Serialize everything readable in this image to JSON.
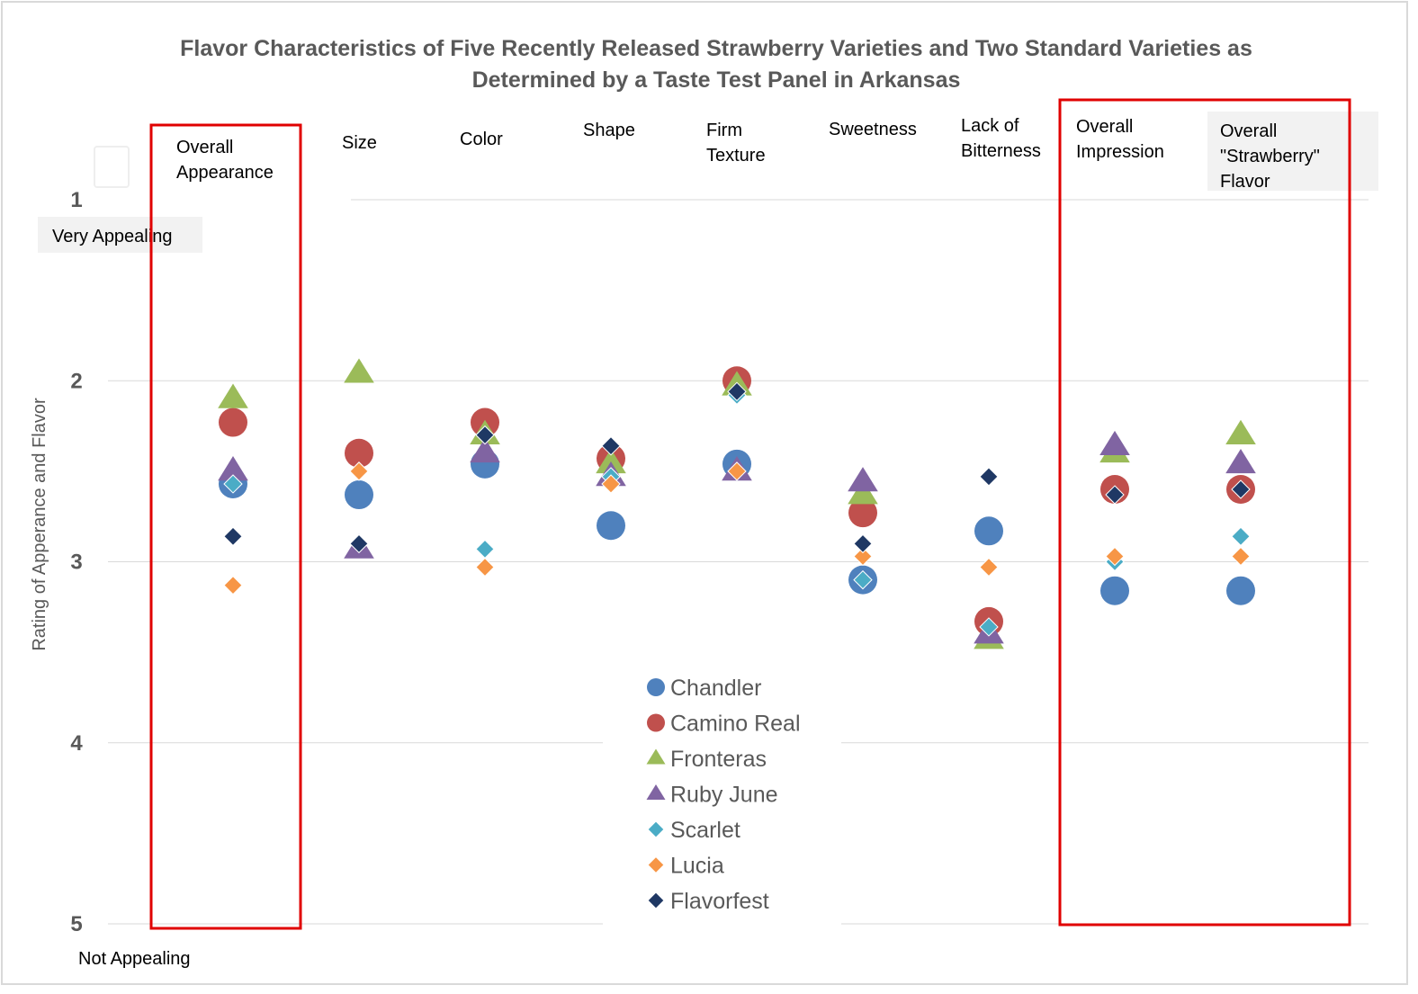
{
  "chart_data": {
    "type": "scatter",
    "title_lines": [
      "Flavor Characteristics of Five Recently Released Strawberry Varieties and Two Standard Varieties as",
      "Determined by a Taste Test Panel in Arkansas"
    ],
    "ylabel": "Rating of Apperance and Flavor",
    "ylim": [
      1,
      5
    ],
    "y_ticks": [
      "1",
      "2",
      "3",
      "4",
      "5"
    ],
    "y_reversed": true,
    "top_note": "Very Appealing",
    "bottom_note": "Not Appealing",
    "categories": [
      [
        "Overall",
        "Appearance"
      ],
      [
        "Size"
      ],
      [
        "Color"
      ],
      [
        "Shape"
      ],
      [
        "Firm",
        "Texture"
      ],
      [
        "Sweetness"
      ],
      [
        "Lack of",
        "Bitterness"
      ],
      [
        "Overall",
        "Impression"
      ],
      [
        "Overall",
        "\"Strawberry\"",
        "Flavor"
      ]
    ],
    "highlighted_categories": [
      0,
      7,
      8
    ],
    "series": [
      {
        "name": "Chandler",
        "marker": "circle",
        "color": "#4f81bd",
        "values": [
          2.57,
          2.63,
          2.46,
          2.8,
          2.46,
          3.1,
          2.83,
          3.16,
          3.16
        ]
      },
      {
        "name": "Camino Real",
        "marker": "circle",
        "color": "#c0504d",
        "values": [
          2.23,
          2.4,
          2.23,
          2.43,
          2.0,
          2.73,
          3.33,
          2.6,
          2.6
        ]
      },
      {
        "name": "Fronteras",
        "marker": "triangle",
        "color": "#9bbb59",
        "values": [
          2.1,
          1.96,
          2.3,
          2.46,
          2.03,
          2.63,
          3.43,
          2.4,
          2.3
        ]
      },
      {
        "name": "Ruby June",
        "marker": "triangle",
        "color": "#8064a2",
        "values": [
          2.5,
          2.93,
          2.4,
          2.53,
          2.5,
          2.56,
          3.4,
          2.36,
          2.46
        ]
      },
      {
        "name": "Scarlet",
        "marker": "diamond",
        "color": "#4bacc6",
        "values": [
          2.57,
          2.5,
          2.93,
          2.53,
          2.08,
          3.1,
          3.36,
          3.0,
          2.86
        ]
      },
      {
        "name": "Lucia",
        "marker": "diamond",
        "color": "#f79646",
        "values": [
          3.13,
          2.5,
          3.03,
          2.57,
          2.5,
          2.97,
          3.03,
          2.97,
          2.97
        ]
      },
      {
        "name": "Flavorfest",
        "marker": "diamond",
        "color": "#1f3864",
        "values": [
          2.86,
          2.9,
          2.3,
          2.36,
          2.06,
          2.9,
          2.53,
          2.63,
          2.6
        ]
      }
    ]
  }
}
